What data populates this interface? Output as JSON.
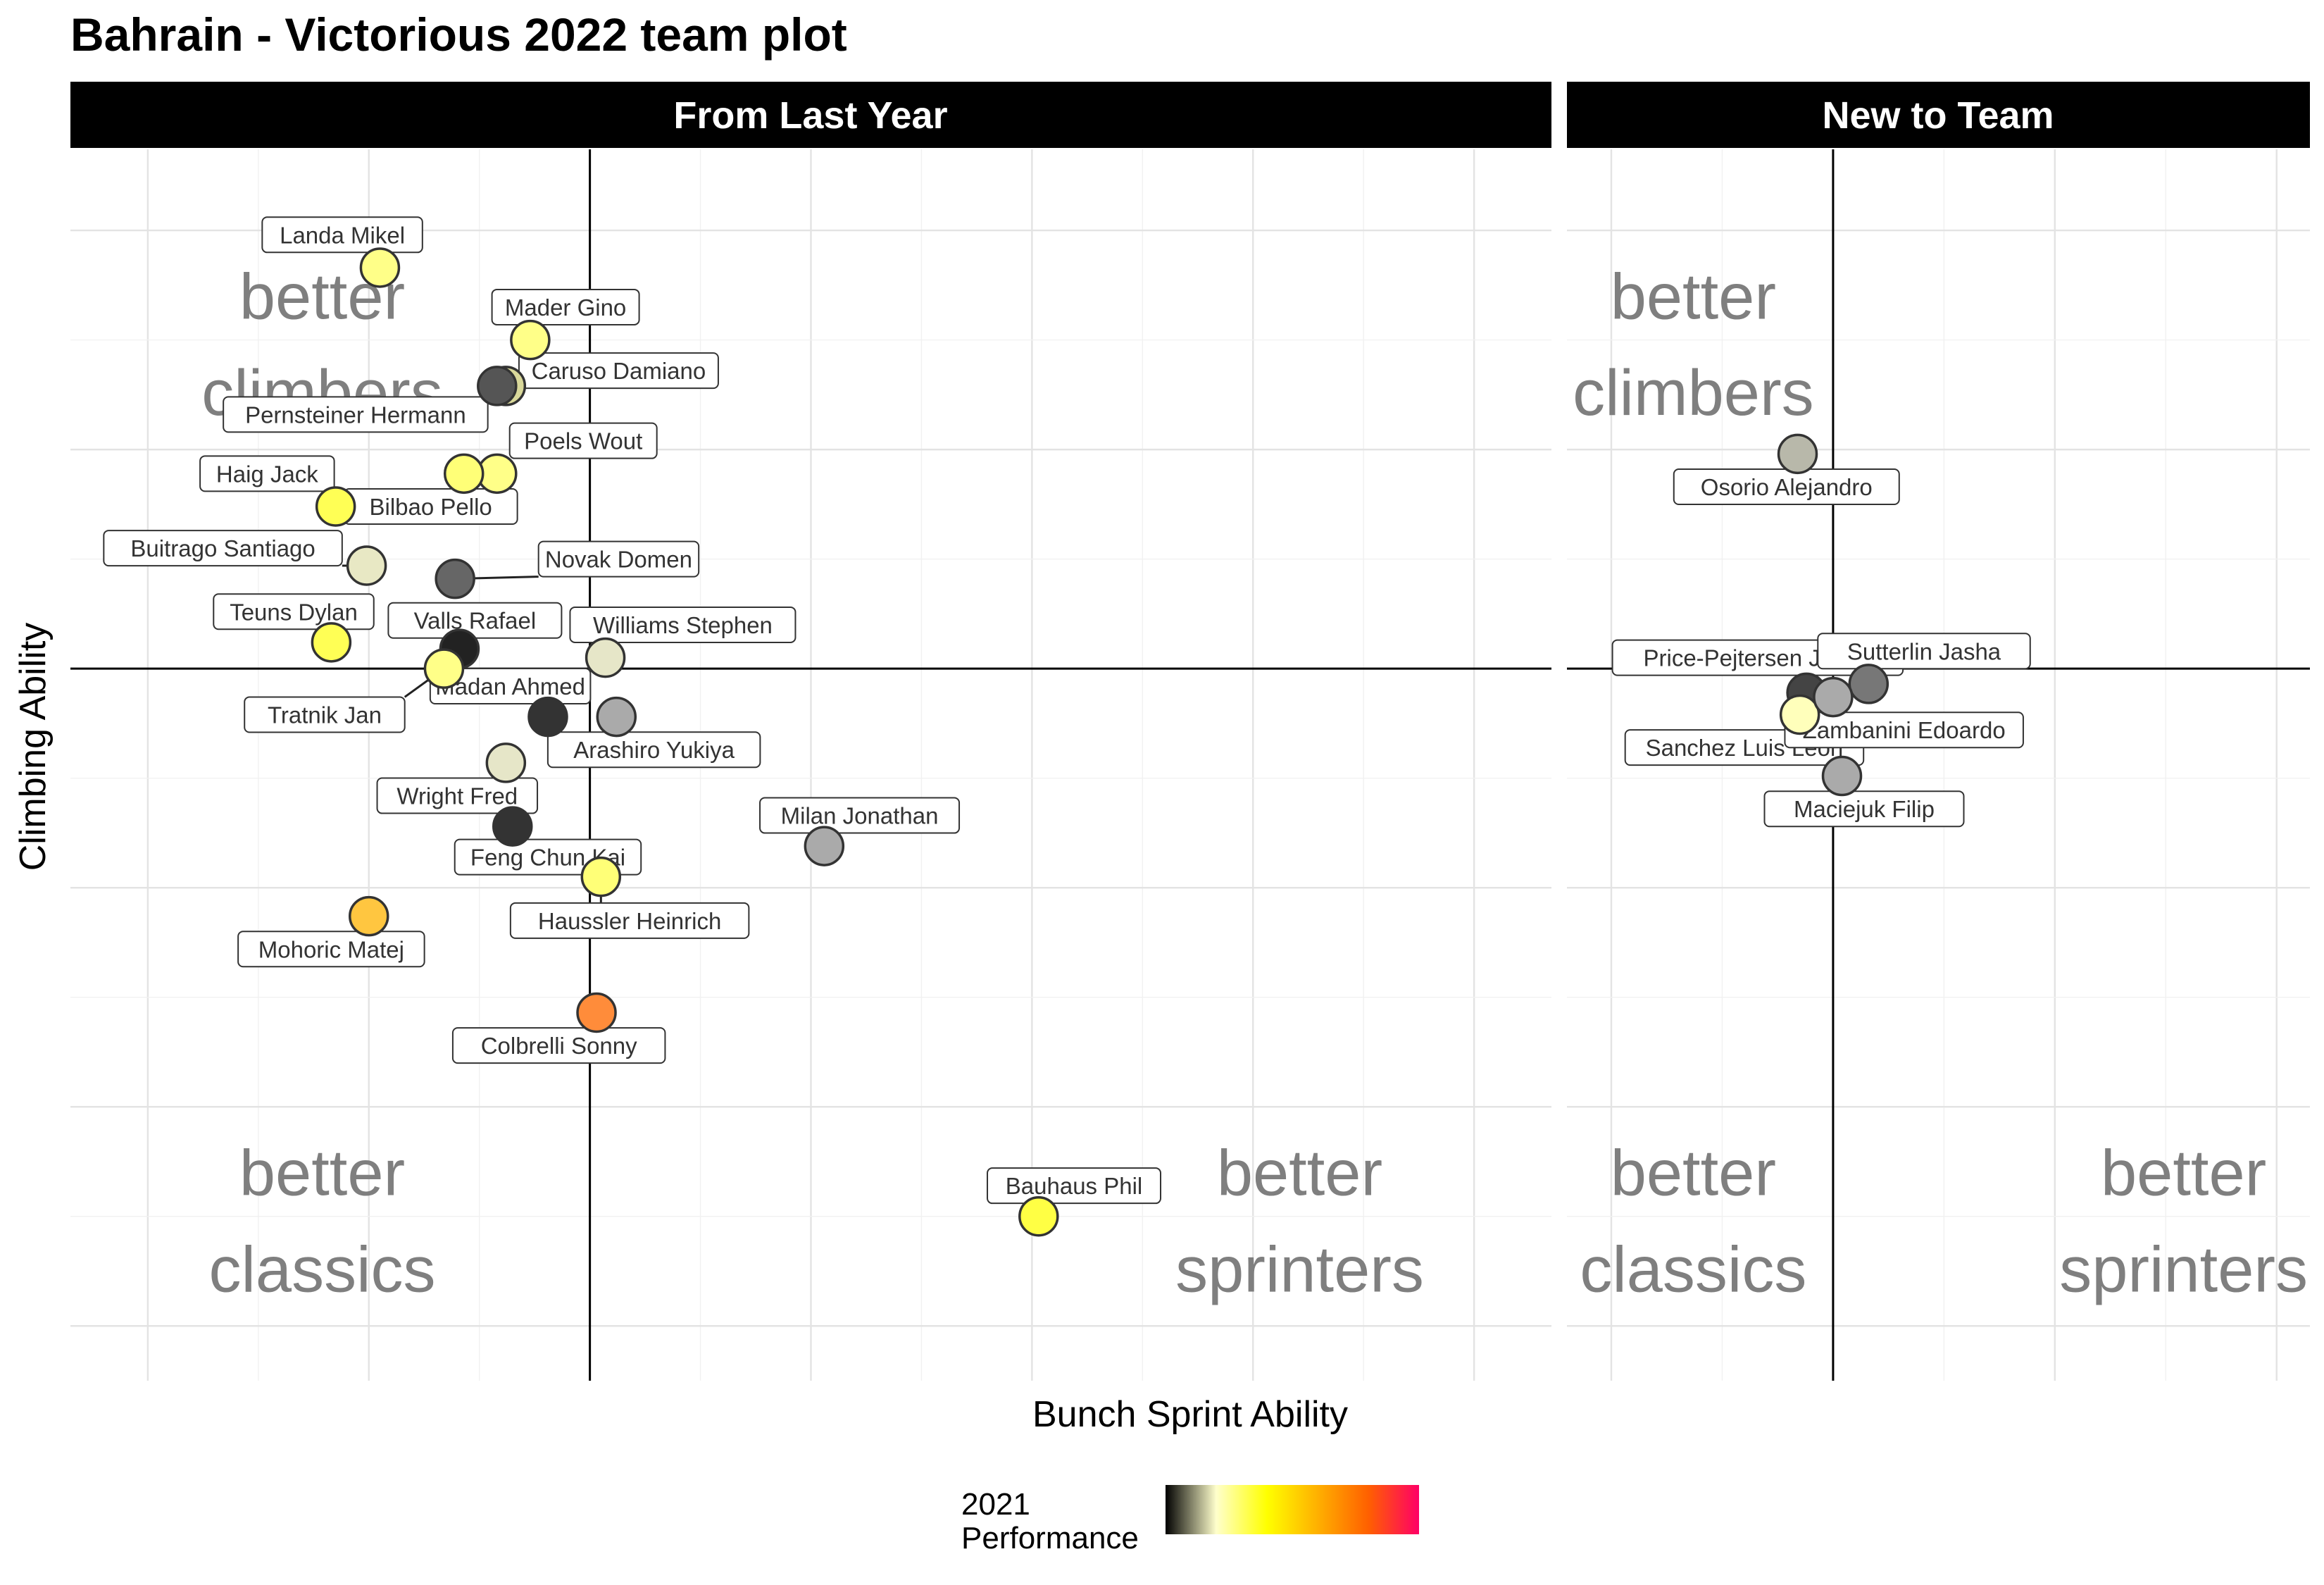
{
  "chart_data": {
    "type": "scatter",
    "title": "Bahrain - Victorious 2022 team plot",
    "xlabel": "Bunch Sprint Ability",
    "ylabel": "Climbing Ability",
    "grid": true,
    "xlim": [
      -2.35,
      4.35
    ],
    "ylim": [
      -3.25,
      2.37
    ],
    "right_xlim": [
      -1.2,
      2.15
    ],
    "legend": {
      "position": "bottom",
      "title_line1": "2021",
      "title_line2": "Performance",
      "gradient": [
        "#000000",
        "#ffffcc",
        "#ffff00",
        "#ffb000",
        "#ff6000",
        "#ff0066"
      ]
    },
    "facets": [
      {
        "label": "From Last Year",
        "quadrant_labels": {
          "tl1": "better",
          "tl2": "climbers",
          "bl1": "better",
          "bl2": "classics",
          "br1": "better",
          "br2": "sprinters"
        },
        "points": [
          {
            "name": "Landa Mikel",
            "x": -0.95,
            "y": 1.83,
            "color": "#ffff88",
            "lx": -1.12,
            "ly": 1.98
          },
          {
            "name": "Mader Gino",
            "x": -0.27,
            "y": 1.5,
            "color": "#ffff88",
            "lx": -0.11,
            "ly": 1.65
          },
          {
            "name": "Caruso Damiano",
            "x": -0.38,
            "y": 1.29,
            "color": "#d9d89a",
            "lx": 0.13,
            "ly": 1.36
          },
          {
            "name": "Pernsteiner Hermann",
            "x": -0.42,
            "y": 1.29,
            "color": "#555555",
            "lx": -1.06,
            "ly": 1.16
          },
          {
            "name": "Poels Wout",
            "x": -0.42,
            "y": 0.89,
            "color": "#ffff88",
            "lx": -0.03,
            "ly": 1.04
          },
          {
            "name": "Haig Jack",
            "x": -1.15,
            "y": 0.74,
            "color": "#ffff55",
            "lx": -1.46,
            "ly": 0.89
          },
          {
            "name": "Bilbao Pello",
            "x": -0.57,
            "y": 0.89,
            "color": "#ffff77",
            "lx": -0.72,
            "ly": 0.74
          },
          {
            "name": "Buitrago Santiago",
            "x": -1.01,
            "y": 0.47,
            "color": "#e8e8c4",
            "lx": -1.66,
            "ly": 0.55
          },
          {
            "name": "Novak Domen",
            "x": -0.61,
            "y": 0.41,
            "color": "#666666",
            "lx": 0.13,
            "ly": 0.5
          },
          {
            "name": "Valls Rafael",
            "x": -0.59,
            "y": 0.09,
            "color": "#222222",
            "lx": -0.52,
            "ly": 0.22
          },
          {
            "name": "Williams Stephen",
            "x": 0.07,
            "y": 0.05,
            "color": "#e6e6c8",
            "lx": 0.42,
            "ly": 0.2
          },
          {
            "name": "Teuns Dylan",
            "x": -1.17,
            "y": 0.12,
            "color": "#ffff55",
            "lx": -1.34,
            "ly": 0.26
          },
          {
            "name": "Tratnik Jan",
            "x": -0.66,
            "y": 0.0,
            "color": "#ffff88",
            "lx": -1.2,
            "ly": -0.21
          },
          {
            "name": "Madan Ahmed",
            "x": -0.19,
            "y": -0.22,
            "color": "#333333",
            "lx": -0.36,
            "ly": -0.08
          },
          {
            "name": "Arashiro Yukiya",
            "x": 0.12,
            "y": -0.22,
            "color": "#aaaaaa",
            "lx": 0.29,
            "ly": -0.37
          },
          {
            "name": "Wright Fred",
            "x": -0.38,
            "y": -0.43,
            "color": "#e6e6c8",
            "lx": -0.6,
            "ly": -0.58
          },
          {
            "name": "Feng Chun Kai",
            "x": -0.35,
            "y": -0.72,
            "color": "#333333",
            "lx": -0.19,
            "ly": -0.86
          },
          {
            "name": "Haussler Heinrich",
            "x": 0.05,
            "y": -0.95,
            "color": "#ffff77",
            "lx": 0.18,
            "ly": -1.15
          },
          {
            "name": "Milan Jonathan",
            "x": 1.06,
            "y": -0.81,
            "color": "#aaaaaa",
            "lx": 1.22,
            "ly": -0.67
          },
          {
            "name": "Mohoric Matej",
            "x": -1.0,
            "y": -1.13,
            "color": "#ffc640",
            "lx": -1.17,
            "ly": -1.28
          },
          {
            "name": "Colbrelli Sonny",
            "x": 0.03,
            "y": -1.57,
            "color": "#ff8c3a",
            "lx": -0.14,
            "ly": -1.72
          },
          {
            "name": "Bauhaus Phil",
            "x": 2.03,
            "y": -2.5,
            "color": "#ffff44",
            "lx": 2.19,
            "ly": -2.36
          }
        ]
      },
      {
        "label": "New to Team",
        "quadrant_labels": {
          "tl1": "better",
          "tl2": "climbers",
          "bl1": "better",
          "bl2": "classics",
          "br1": "better",
          "br2": "sprinters"
        },
        "points": [
          {
            "name": "Osorio Alejandro",
            "x": -0.16,
            "y": 0.98,
            "color": "#b8b8aa",
            "lx": -0.21,
            "ly": 0.83
          },
          {
            "name": "Price-Pejtersen Johan",
            "x": -0.12,
            "y": -0.11,
            "color": "#444444",
            "lx": -0.34,
            "ly": 0.05
          },
          {
            "name": "Sutterlin Jasha",
            "x": 0.16,
            "y": -0.07,
            "color": "#777777",
            "lx": 0.41,
            "ly": 0.08
          },
          {
            "name": "Sanchez Luis Leon",
            "x": -0.15,
            "y": -0.21,
            "color": "#ffffbb",
            "lx": -0.4,
            "ly": -0.36
          },
          {
            "name": "Zambanini Edoardo",
            "x": 0.0,
            "y": -0.13,
            "color": "#aaaaaa",
            "lx": 0.32,
            "ly": -0.28
          },
          {
            "name": "Maciejuk Filip",
            "x": 0.04,
            "y": -0.49,
            "color": "#aaaaaa",
            "lx": 0.14,
            "ly": -0.64
          }
        ]
      }
    ]
  }
}
